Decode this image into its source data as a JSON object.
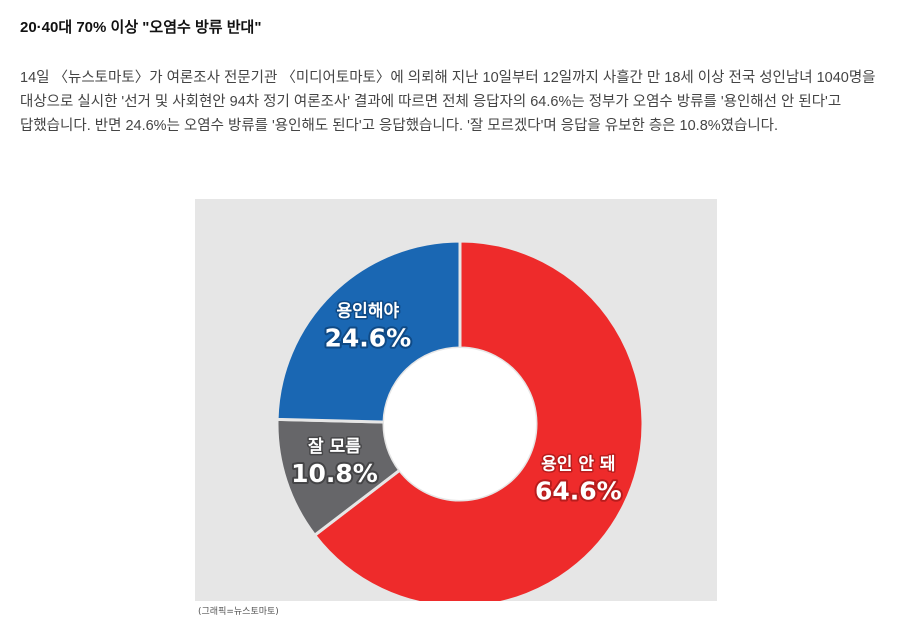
{
  "headline": "20·40대 70% 이상 \"오염수 방류 반대\"",
  "article": "14일 〈뉴스토마토〉가 여론조사 전문기관 〈미디어토마토〉에 의뢰해 지난 10일부터 12일까지 사흘간 만 18세 이상 전국 성인남녀 1040명을 대상으로 실시한 '선거 및 사회현안 94차 정기 여론조사' 결과에 따르면 전체 응답자의 64.6%는 정부가 오염수 방류를 '용인해선 안 된다'고 답했습니다. 반면 24.6%는 오염수 방류를 '용인해도 된다'고 응답했습니다. '잘 모르겠다'며 응답을 유보한 층은 10.8%였습니다.",
  "credit": "(그래픽=뉴스토마토)",
  "colors": {
    "background": "#e6e6e6",
    "hole": "#ffffff"
  },
  "chart_data": {
    "type": "pie",
    "donut": true,
    "title": "",
    "slices": [
      {
        "label": "용인 안 돼",
        "value": 64.6,
        "value_label": "64.6%",
        "color": "#ee2b2b",
        "text_stroke": "#b81d1d"
      },
      {
        "label": "잘 모름",
        "value": 10.8,
        "value_label": "10.8%",
        "color": "#666669",
        "text_stroke": "#454547"
      },
      {
        "label": "용인해야",
        "value": 24.6,
        "value_label": "24.6%",
        "color": "#1a67b3",
        "text_stroke": "#0f4a86"
      }
    ]
  }
}
